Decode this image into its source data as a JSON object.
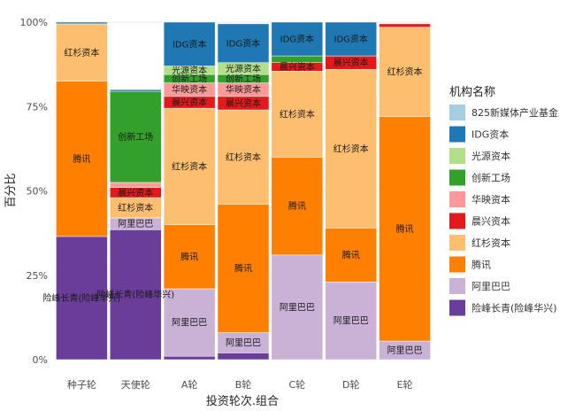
{
  "chart_data": {
    "type": "bar",
    "stacked": true,
    "percent": true,
    "xlabel": "投资轮次.组合",
    "ylabel": "百分比",
    "ylim": [
      0,
      1
    ],
    "yticks": [
      0,
      0.25,
      0.5,
      0.75,
      1.0
    ],
    "ytick_labels": [
      "0%",
      "25%",
      "50%",
      "75%",
      "100%"
    ],
    "grid": true,
    "legend_title": "机构名称",
    "legend_position": "right",
    "categories": [
      "种子轮",
      "天使轮",
      "A轮",
      "B轮",
      "C轮",
      "D轮",
      "E轮"
    ],
    "series": [
      {
        "name": "825新媒体产业基金",
        "color": "#a6cee3",
        "values": [
          0.0,
          0.0,
          0.0,
          0.0,
          0.0,
          0.0,
          0.0
        ]
      },
      {
        "name": "IDG资本",
        "color": "#1f78b4",
        "values": [
          0.005,
          0.005,
          0.13,
          0.115,
          0.1,
          0.1,
          0.0
        ]
      },
      {
        "name": "光源资本",
        "color": "#b2df8a",
        "values": [
          0.0,
          0.0,
          0.025,
          0.035,
          0.0,
          0.0,
          0.0
        ]
      },
      {
        "name": "创新工场",
        "color": "#33a02c",
        "values": [
          0.0,
          0.27,
          0.025,
          0.025,
          0.02,
          0.0,
          0.0
        ]
      },
      {
        "name": "华映资本",
        "color": "#fb9a99",
        "values": [
          0.0,
          0.015,
          0.04,
          0.04,
          0.0,
          0.0,
          0.0
        ]
      },
      {
        "name": "晨兴资本",
        "color": "#e31a1c",
        "values": [
          0.0,
          0.03,
          0.035,
          0.04,
          0.025,
          0.04,
          0.01
        ]
      },
      {
        "name": "红杉资本",
        "color": "#fdbf6f",
        "values": [
          0.17,
          0.06,
          0.345,
          0.28,
          0.255,
          0.47,
          0.265
        ]
      },
      {
        "name": "腾讯",
        "color": "#ff7f00",
        "values": [
          0.46,
          0.0,
          0.19,
          0.38,
          0.29,
          0.16,
          0.665
        ]
      },
      {
        "name": "阿里巴巴",
        "color": "#cab2d6",
        "values": [
          0.0,
          0.035,
          0.2,
          0.06,
          0.31,
          0.23,
          0.055
        ]
      },
      {
        "name": "险峰长青(险峰华兴)",
        "color": "#6a3d9a",
        "values": [
          0.365,
          0.385,
          0.01,
          0.02,
          0.0,
          0.0,
          0.0
        ]
      }
    ],
    "annotations": [
      "IDG资本",
      "825新媒体产业基金",
      "红杉资本",
      "腾讯",
      "峰长青(险峰华兴)",
      "光源资本",
      "创新工场",
      "华映资本",
      "晨兴资本",
      "阿里巴巴",
      "险峰长青(险峰华兴)",
      "IDG资本",
      "光源资本",
      "创新工场",
      "华映资本",
      "晨兴资本",
      "红杉资本",
      "腾讯",
      "阿里巴巴",
      "险峰长青(险峰华兴)",
      "IDG资本",
      "创新工场",
      "晨兴资本",
      "红杉资本",
      "腾讯",
      "阿里巴巴",
      "险峰长青(险峰华兴)",
      "IDG资本",
      "晨兴资本",
      "红杉资本",
      "腾讯",
      "阿里巴巴",
      "晨兴资本",
      "红杉资本",
      "腾讯",
      "阿里巴巴"
    ]
  }
}
